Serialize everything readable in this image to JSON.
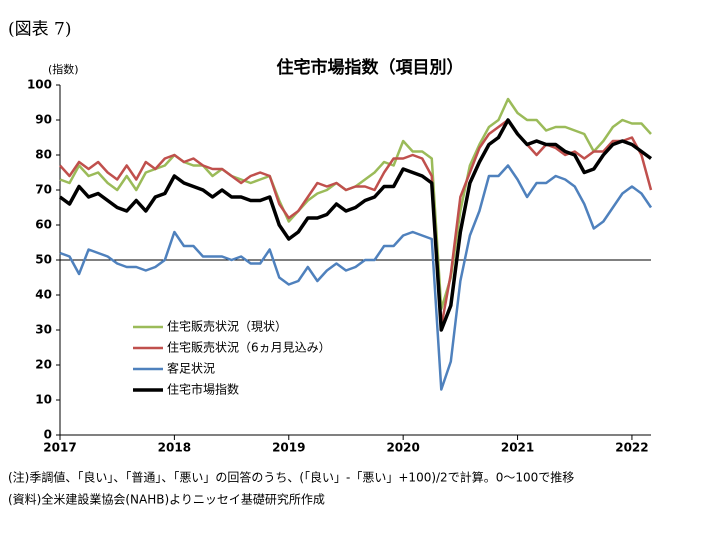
{
  "chart_data": {
    "type": "line",
    "figure_label": "(図表 7)",
    "title": "住宅市場指数（項目別）",
    "y_label": "(指数)",
    "categories": [
      "2017",
      null,
      null,
      null,
      null,
      null,
      null,
      null,
      null,
      null,
      null,
      null,
      "2018",
      null,
      null,
      null,
      null,
      null,
      null,
      null,
      null,
      null,
      null,
      null,
      "2019",
      null,
      null,
      null,
      null,
      null,
      null,
      null,
      null,
      null,
      null,
      null,
      "2020",
      null,
      null,
      null,
      null,
      null,
      null,
      null,
      null,
      null,
      null,
      null,
      "2021",
      null,
      null,
      null,
      null,
      null,
      null,
      null,
      null,
      null,
      null,
      null,
      "2022",
      null,
      null
    ],
    "series": [
      {
        "name": "住宅販売状況（現状）",
        "color": "#9bbb59",
        "width": 2.5,
        "values": [
          73,
          72,
          77,
          74,
          75,
          72,
          70,
          74,
          70,
          75,
          76,
          77,
          80,
          78,
          77,
          77,
          74,
          76,
          74,
          73,
          72,
          73,
          74,
          67,
          61,
          64,
          67,
          69,
          70,
          72,
          70,
          71,
          73,
          75,
          78,
          77,
          84,
          81,
          81,
          79,
          36,
          45,
          64,
          77,
          83,
          88,
          90,
          96,
          92,
          90,
          90,
          87,
          88,
          88,
          87,
          86,
          81,
          84,
          88,
          90,
          89,
          89,
          86
        ]
      },
      {
        "name": "住宅販売状況（6ヵ月見込み）",
        "color": "#c0504d",
        "width": 2.5,
        "values": [
          77,
          74,
          78,
          76,
          78,
          75,
          73,
          77,
          73,
          78,
          76,
          79,
          80,
          78,
          79,
          77,
          76,
          76,
          74,
          72,
          74,
          75,
          74,
          66,
          62,
          64,
          68,
          72,
          71,
          72,
          70,
          71,
          71,
          70,
          75,
          79,
          79,
          80,
          79,
          74,
          31,
          46,
          68,
          75,
          82,
          86,
          88,
          90,
          86,
          83,
          80,
          83,
          82,
          80,
          81,
          79,
          81,
          81,
          84,
          84,
          85,
          80,
          70
        ]
      },
      {
        "name": "客足状況",
        "color": "#4f81bd",
        "width": 2.5,
        "values": [
          52,
          51,
          46,
          53,
          52,
          51,
          49,
          48,
          48,
          47,
          48,
          50,
          58,
          54,
          54,
          51,
          51,
          51,
          50,
          51,
          49,
          49,
          53,
          45,
          43,
          44,
          48,
          44,
          47,
          49,
          47,
          48,
          50,
          50,
          54,
          54,
          57,
          58,
          57,
          56,
          13,
          21,
          44,
          57,
          64,
          74,
          74,
          77,
          73,
          68,
          72,
          72,
          74,
          73,
          71,
          66,
          59,
          61,
          65,
          69,
          71,
          69,
          65
        ]
      },
      {
        "name": "住宅市場指数",
        "color": "#000000",
        "width": 3.5,
        "values": [
          68,
          66,
          71,
          68,
          69,
          67,
          65,
          64,
          67,
          64,
          68,
          69,
          74,
          72,
          71,
          70,
          68,
          70,
          68,
          68,
          67,
          67,
          68,
          60,
          56,
          58,
          62,
          62,
          63,
          66,
          64,
          65,
          67,
          68,
          71,
          71,
          76,
          75,
          74,
          72,
          30,
          37,
          58,
          72,
          78,
          83,
          85,
          90,
          86,
          83,
          84,
          83,
          83,
          81,
          80,
          75,
          76,
          80,
          83,
          84,
          83,
          81,
          79
        ]
      }
    ],
    "ylim": [
      0,
      100
    ],
    "yticks": [
      0,
      10,
      20,
      30,
      40,
      50,
      60,
      70,
      80,
      90,
      100
    ],
    "ygrid": [
      50
    ],
    "legend": "lower-left",
    "notes": [
      "(注)季調値、「良い」、「普通」、「悪い」の回答のうち、(「良い」-「悪い」+100)/2で計算。0～100で推移",
      "(資料)全米建設業協会(NAHB)よりニッセイ基礎研究所作成"
    ]
  }
}
